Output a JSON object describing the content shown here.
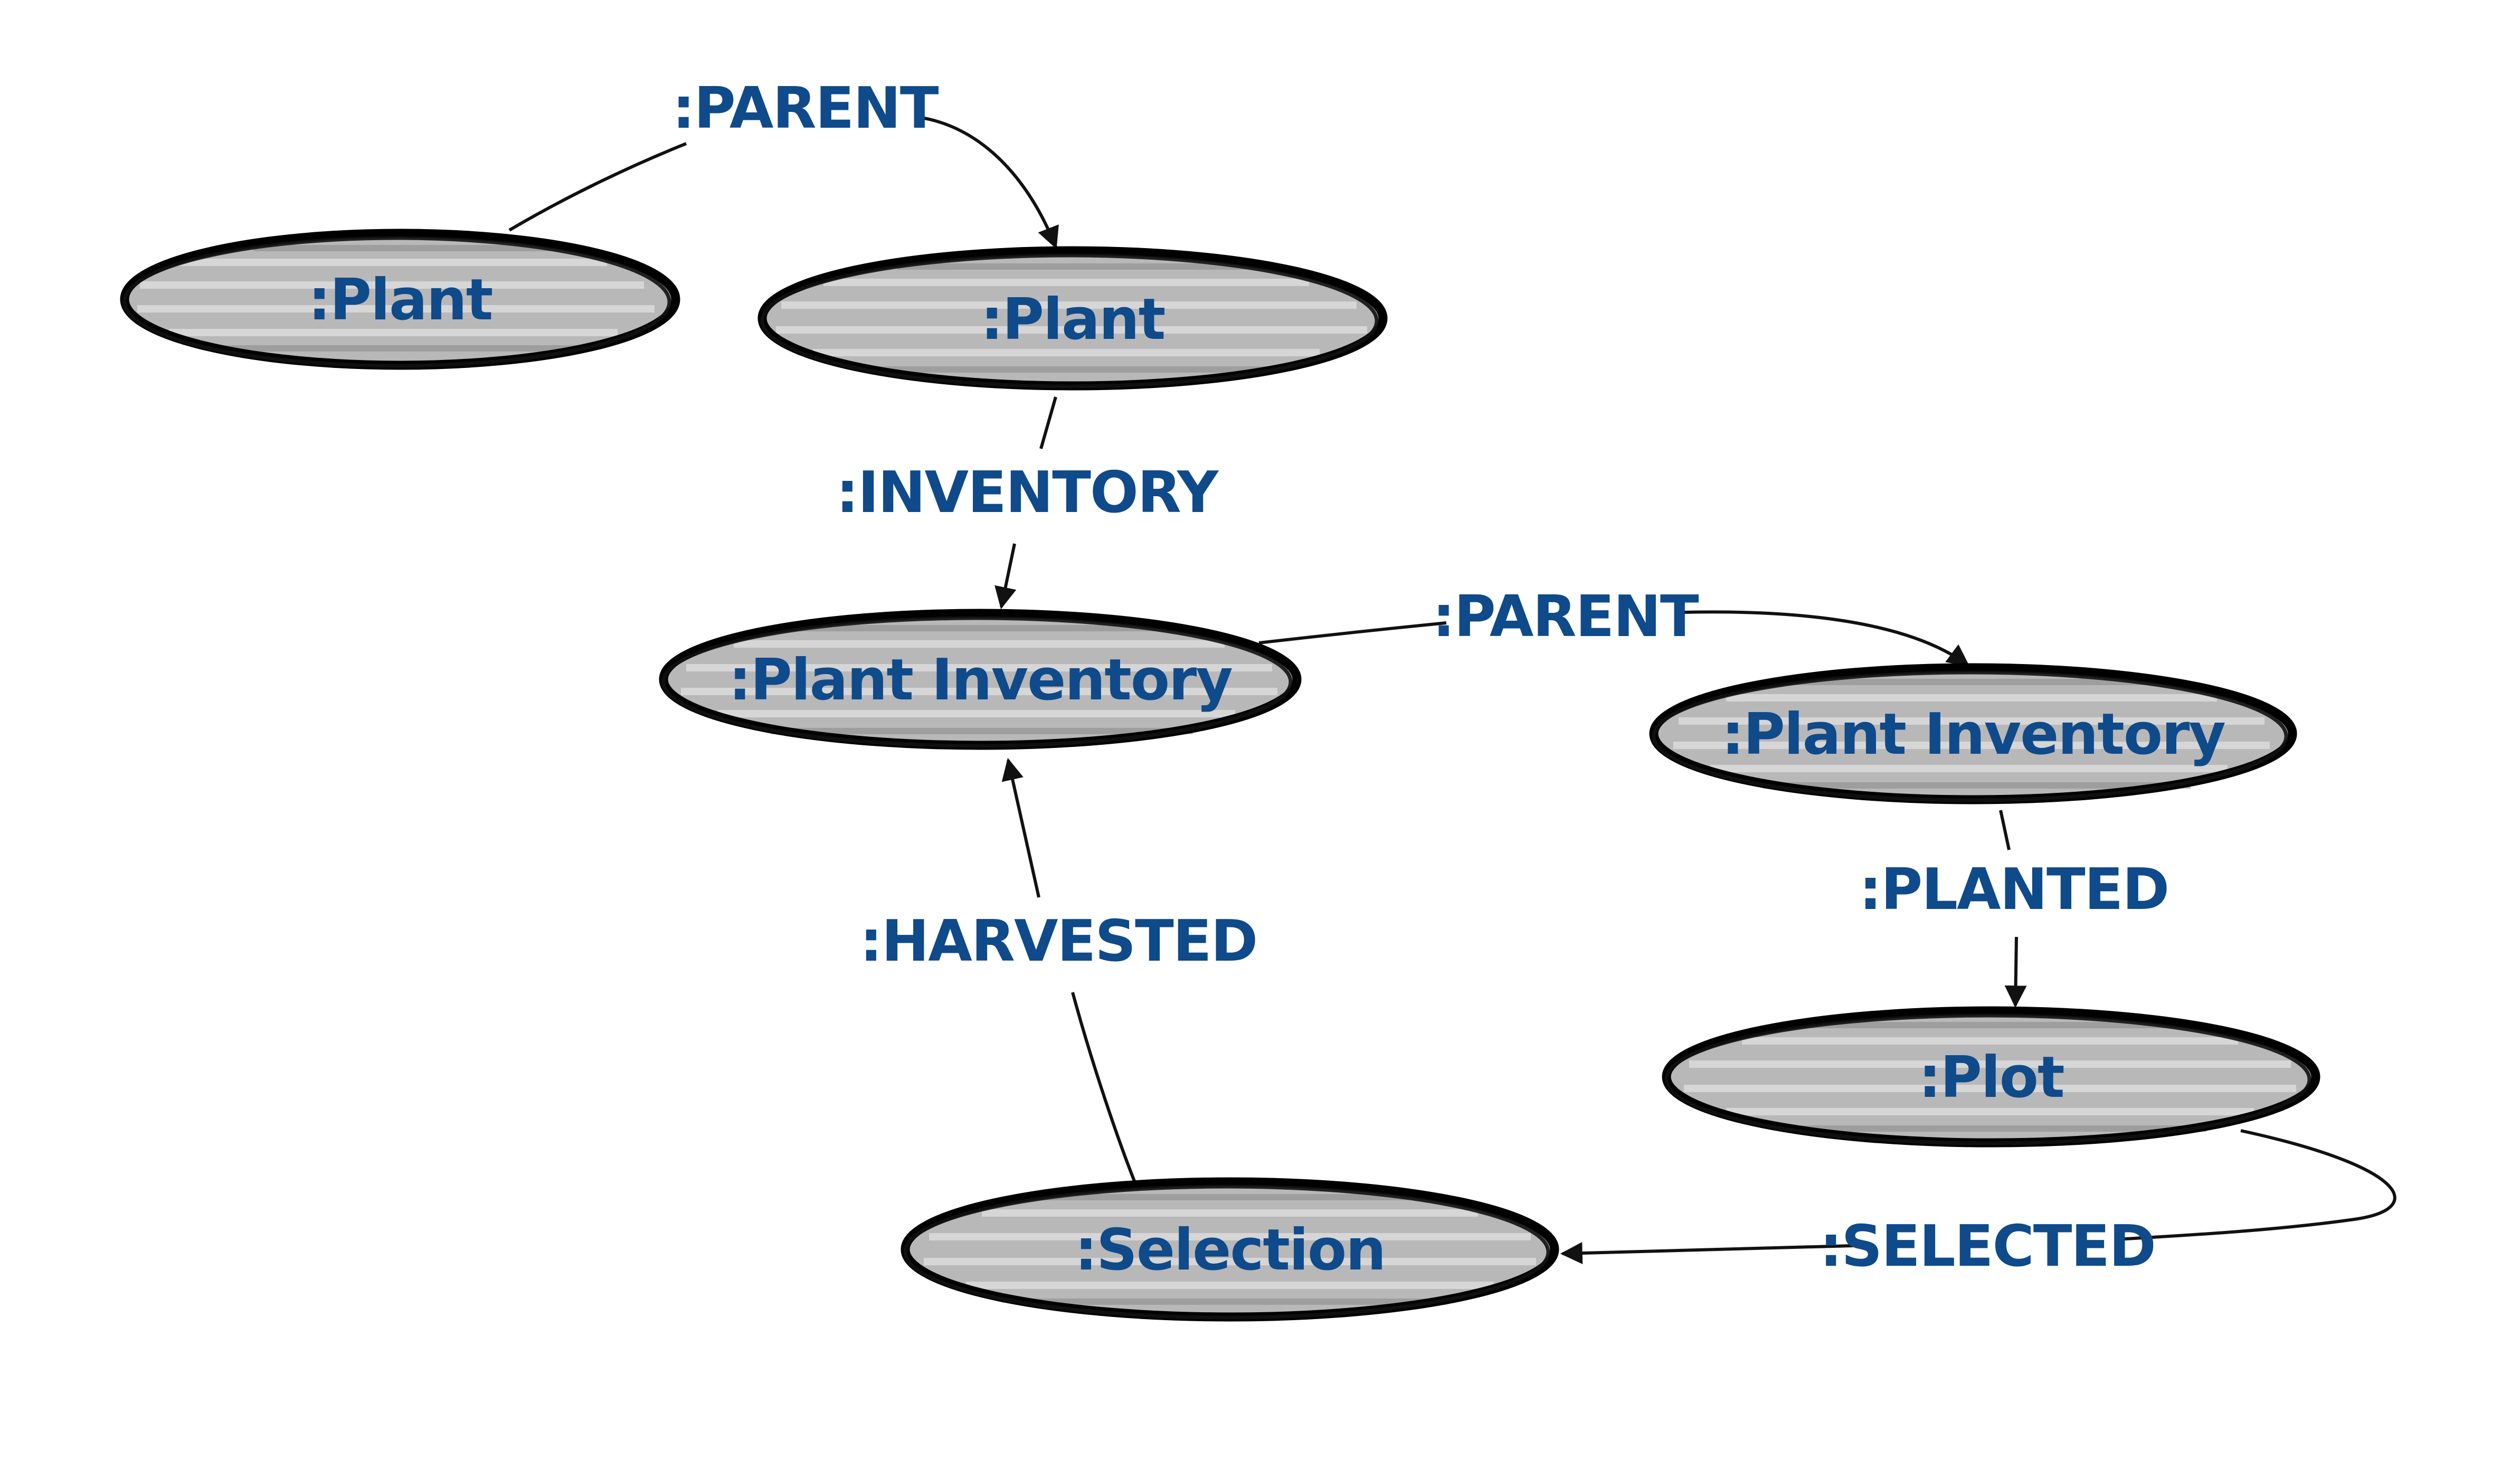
{
  "diagram": {
    "nodes": [
      {
        "id": "plant-parent",
        "label": ":Plant"
      },
      {
        "id": "plant-child",
        "label": ":Plant"
      },
      {
        "id": "inventory-a",
        "label": ":Plant Inventory"
      },
      {
        "id": "inventory-b",
        "label": ":Plant Inventory"
      },
      {
        "id": "plot",
        "label": ":Plot"
      },
      {
        "id": "selection",
        "label": ":Selection"
      }
    ],
    "edges": [
      {
        "id": "plant-parent-edge",
        "label": ":PARENT",
        "from": "plant-parent",
        "to": "plant-child"
      },
      {
        "id": "inventory-edge",
        "label": ":INVENTORY",
        "from": "plant-child",
        "to": "inventory-a"
      },
      {
        "id": "inventory-parent-edge",
        "label": ":PARENT",
        "from": "inventory-a",
        "to": "inventory-b"
      },
      {
        "id": "planted-edge",
        "label": ":PLANTED",
        "from": "inventory-b",
        "to": "plot"
      },
      {
        "id": "selected-edge",
        "label": ":SELECTED",
        "from": "plot",
        "to": "selection"
      },
      {
        "id": "harvested-edge",
        "label": ":HARVESTED",
        "from": "selection",
        "to": "inventory-a"
      }
    ]
  }
}
